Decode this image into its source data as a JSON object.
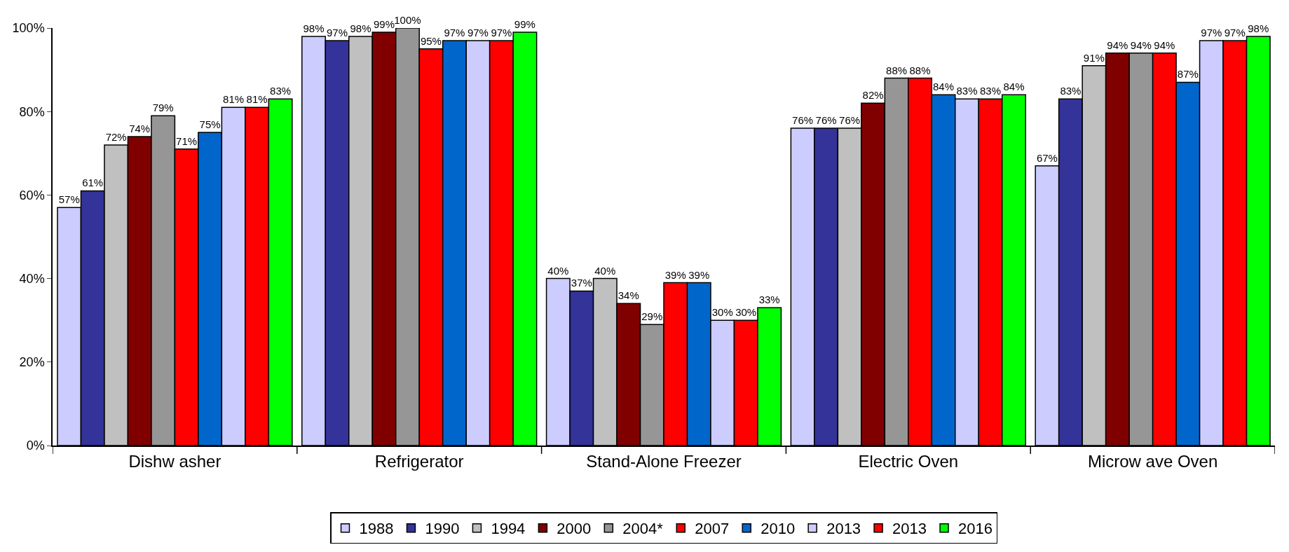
{
  "chart_data": {
    "type": "bar",
    "categories": [
      "Dishw asher",
      "Refrigerator",
      "Stand-Alone Freezer",
      "Electric Oven",
      "Microw ave Oven"
    ],
    "series": [
      {
        "name": "1988",
        "color": "#ccccff",
        "values": [
          57,
          98,
          40,
          76,
          67
        ],
        "value_labels": [
          "57%",
          "98%",
          "40%",
          "76%",
          "67%"
        ]
      },
      {
        "name": "1990",
        "color": "#333399",
        "values": [
          61,
          97,
          37,
          76,
          83
        ],
        "value_labels": [
          "61%",
          "97%",
          "37%",
          "76%",
          "83%"
        ]
      },
      {
        "name": "1994",
        "color": "#c0c0c0",
        "values": [
          72,
          98,
          40,
          76,
          91
        ],
        "value_labels": [
          "72%",
          "98%",
          "40%",
          "76%",
          "91%"
        ]
      },
      {
        "name": "2000",
        "color": "#800000",
        "values": [
          74,
          99,
          34,
          82,
          94
        ],
        "value_labels": [
          "74%",
          "99%",
          "34%",
          "82%",
          "94%"
        ]
      },
      {
        "name": "2004*",
        "color": "#969696",
        "values": [
          79,
          100,
          29,
          88,
          94
        ],
        "value_labels": [
          "79%",
          "100%",
          "29%",
          "88%",
          "94%"
        ]
      },
      {
        "name": "2007",
        "color": "#ff0000",
        "values": [
          71,
          95,
          39,
          88,
          94
        ],
        "value_labels": [
          "71%",
          "95%",
          "39%",
          "88%",
          "94%"
        ]
      },
      {
        "name": "2010",
        "color": "#0066cc",
        "values": [
          75,
          97,
          39,
          84,
          87
        ],
        "value_labels": [
          "75%",
          "97%",
          "39%",
          "84%",
          "87%"
        ]
      },
      {
        "name": "2013",
        "color": "#ccccff",
        "values": [
          81,
          97,
          30,
          83,
          97
        ],
        "value_labels": [
          "81%",
          "97%",
          "30%",
          "83%",
          "97%"
        ]
      },
      {
        "name": "2013",
        "color": "#ff0000",
        "values": [
          81,
          97,
          30,
          83,
          97
        ],
        "value_labels": [
          "81%",
          "97%",
          "30%",
          "83%",
          "97%"
        ]
      },
      {
        "name": "2016",
        "color": "#00ff00",
        "values": [
          83,
          99,
          33,
          84,
          98
        ],
        "value_labels": [
          "83%",
          "99%",
          "33%",
          "84%",
          "98%"
        ]
      }
    ],
    "ylim": [
      0,
      100
    ],
    "yticks": [
      {
        "value": 0,
        "label": "0%"
      },
      {
        "value": 20,
        "label": "20%"
      },
      {
        "value": 40,
        "label": "40%"
      },
      {
        "value": 60,
        "label": "60%"
      },
      {
        "value": 80,
        "label": "80%"
      },
      {
        "value": 100,
        "label": "100%"
      }
    ],
    "legend": "bottom"
  }
}
